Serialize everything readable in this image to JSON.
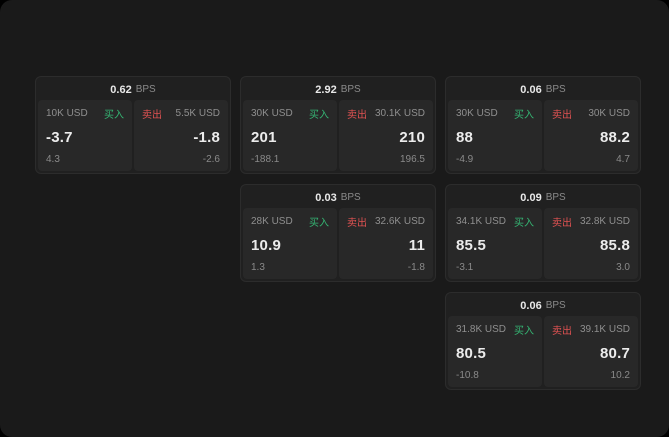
{
  "labels": {
    "bps": "BPS",
    "buy": "买入",
    "sell": "卖出"
  },
  "colors": {
    "background": "#1a1a1a",
    "card": "#202020",
    "panel": "#282828",
    "buy_green": "#35b573",
    "sell_red": "#e05252",
    "text_primary": "#ececec",
    "text_secondary": "#8a8a8a"
  },
  "cards": [
    {
      "bps": "0.62",
      "buy": {
        "amount": "10K USD",
        "value": "-3.7",
        "sub": "4.3"
      },
      "sell": {
        "amount": "5.5K USD",
        "value": "-1.8",
        "sub": "-2.6"
      }
    },
    {
      "bps": "2.92",
      "buy": {
        "amount": "30K USD",
        "value": "201",
        "sub": "-188.1"
      },
      "sell": {
        "amount": "30.1K USD",
        "value": "210",
        "sub": "196.5"
      }
    },
    {
      "bps": "0.06",
      "buy": {
        "amount": "30K USD",
        "value": "88",
        "sub": "-4.9"
      },
      "sell": {
        "amount": "30K USD",
        "value": "88.2",
        "sub": "4.7"
      }
    },
    {
      "bps": "0.03",
      "buy": {
        "amount": "28K USD",
        "value": "10.9",
        "sub": "1.3"
      },
      "sell": {
        "amount": "32.6K USD",
        "value": "11",
        "sub": "-1.8"
      }
    },
    {
      "bps": "0.09",
      "buy": {
        "amount": "34.1K USD",
        "value": "85.5",
        "sub": "-3.1"
      },
      "sell": {
        "amount": "32.8K USD",
        "value": "85.8",
        "sub": "3.0"
      }
    },
    {
      "bps": "0.06",
      "buy": {
        "amount": "31.8K USD",
        "value": "80.5",
        "sub": "-10.8"
      },
      "sell": {
        "amount": "39.1K USD",
        "value": "80.7",
        "sub": "10.2"
      }
    }
  ]
}
